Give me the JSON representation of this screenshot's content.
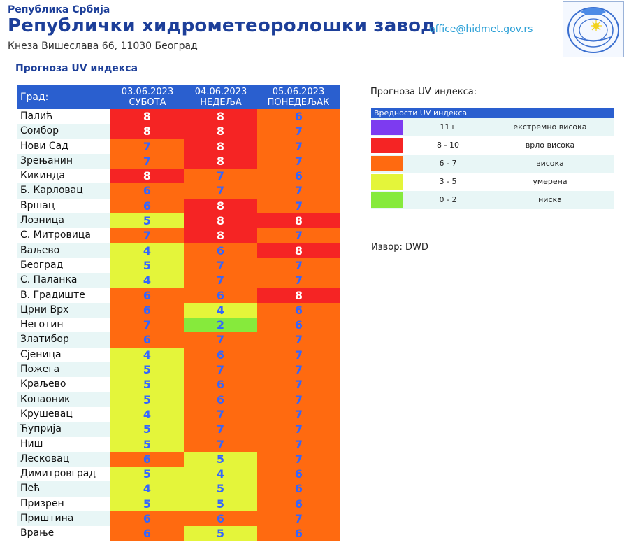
{
  "header": {
    "org_small": "Република Србија",
    "org_title": "Републички хидрометеоролошки завод",
    "address": "Кнеза Вишеслава 66, 11030 Београд",
    "email": "office@hidmet.gov.rs",
    "logo_icon": "rhmz-logo-icon",
    "logo_text": "РХМЗ СРБИЈЕ"
  },
  "page_title": "Прогноза UV индекса",
  "table": {
    "city_header": "Град:",
    "days": [
      {
        "date": "03.06.2023",
        "weekday": "СУБОТА"
      },
      {
        "date": "04.06.2023",
        "weekday": "НЕДЕЉА"
      },
      {
        "date": "05.06.2023",
        "weekday": "ПОНЕДЕЉАК"
      }
    ],
    "rows": [
      {
        "city": "Палић",
        "values": [
          "8",
          "8",
          "6"
        ],
        "levels": [
          "very",
          "very",
          "high"
        ]
      },
      {
        "city": "Сомбор",
        "values": [
          "8",
          "8",
          "7"
        ],
        "levels": [
          "very",
          "very",
          "high"
        ]
      },
      {
        "city": "Нови Сад",
        "values": [
          "7",
          "8",
          "7"
        ],
        "levels": [
          "high",
          "very",
          "high"
        ]
      },
      {
        "city": "Зрењанин",
        "values": [
          "7",
          "8",
          "7"
        ],
        "levels": [
          "high",
          "very",
          "high"
        ]
      },
      {
        "city": "Кикинда",
        "values": [
          "8",
          "7",
          "6"
        ],
        "levels": [
          "very",
          "high",
          "high"
        ]
      },
      {
        "city": "Б. Карловац",
        "values": [
          "6",
          "7",
          "7"
        ],
        "levels": [
          "high",
          "high",
          "high"
        ]
      },
      {
        "city": "Вршац",
        "values": [
          "6",
          "8",
          "7"
        ],
        "levels": [
          "high",
          "very",
          "high"
        ]
      },
      {
        "city": "Лозница",
        "values": [
          "5",
          "8",
          "8"
        ],
        "levels": [
          "mod",
          "very",
          "very"
        ]
      },
      {
        "city": "С. Митровица",
        "values": [
          "7",
          "8",
          "7"
        ],
        "levels": [
          "high",
          "very",
          "high"
        ]
      },
      {
        "city": "Ваљево",
        "values": [
          "4",
          "6",
          "8"
        ],
        "levels": [
          "mod",
          "high",
          "very"
        ]
      },
      {
        "city": "Београд",
        "values": [
          "5",
          "7",
          "7"
        ],
        "levels": [
          "mod",
          "high",
          "high"
        ]
      },
      {
        "city": "С. Паланка",
        "values": [
          "4",
          "7",
          "7"
        ],
        "levels": [
          "mod",
          "high",
          "high"
        ]
      },
      {
        "city": "В. Градиште",
        "values": [
          "6",
          "6",
          "8"
        ],
        "levels": [
          "high",
          "high",
          "very"
        ]
      },
      {
        "city": "Црни Врх",
        "values": [
          "6",
          "4",
          "6"
        ],
        "levels": [
          "high",
          "mod",
          "high"
        ]
      },
      {
        "city": "Неготин",
        "values": [
          "7",
          "2",
          "6"
        ],
        "levels": [
          "high",
          "low",
          "high"
        ]
      },
      {
        "city": "Златибор",
        "values": [
          "6",
          "7",
          "7"
        ],
        "levels": [
          "high",
          "high",
          "high"
        ]
      },
      {
        "city": "Сјеница",
        "values": [
          "4",
          "6",
          "7"
        ],
        "levels": [
          "mod",
          "high",
          "high"
        ]
      },
      {
        "city": "Пожега",
        "values": [
          "5",
          "7",
          "7"
        ],
        "levels": [
          "mod",
          "high",
          "high"
        ]
      },
      {
        "city": "Краљево",
        "values": [
          "5",
          "6",
          "7"
        ],
        "levels": [
          "mod",
          "high",
          "high"
        ]
      },
      {
        "city": "Копаоник",
        "values": [
          "5",
          "6",
          "7"
        ],
        "levels": [
          "mod",
          "high",
          "high"
        ]
      },
      {
        "city": "Крушевац",
        "values": [
          "4",
          "7",
          "7"
        ],
        "levels": [
          "mod",
          "high",
          "high"
        ]
      },
      {
        "city": "Ћуприја",
        "values": [
          "5",
          "7",
          "7"
        ],
        "levels": [
          "mod",
          "high",
          "high"
        ]
      },
      {
        "city": "Ниш",
        "values": [
          "5",
          "7",
          "7"
        ],
        "levels": [
          "mod",
          "high",
          "high"
        ]
      },
      {
        "city": "Лесковац",
        "values": [
          "6",
          "5",
          "7"
        ],
        "levels": [
          "high",
          "mod",
          "high"
        ]
      },
      {
        "city": "Димитровград",
        "values": [
          "5",
          "4",
          "6"
        ],
        "levels": [
          "mod",
          "mod",
          "high"
        ]
      },
      {
        "city": "Пећ",
        "values": [
          "4",
          "5",
          "6"
        ],
        "levels": [
          "mod",
          "mod",
          "high"
        ]
      },
      {
        "city": "Призрен",
        "values": [
          "5",
          "5",
          "6"
        ],
        "levels": [
          "mod",
          "mod",
          "high"
        ]
      },
      {
        "city": "Приштина",
        "values": [
          "6",
          "6",
          "7"
        ],
        "levels": [
          "high",
          "high",
          "high"
        ]
      },
      {
        "city": "Врање",
        "values": [
          "6",
          "5",
          "6"
        ],
        "levels": [
          "high",
          "mod",
          "high"
        ]
      }
    ]
  },
  "legend": {
    "title": "Прогноза UV индекса:",
    "header": "Вредности UV индекса",
    "items": [
      {
        "range": "11+",
        "label": "екстремно висока",
        "level": "ext",
        "color": "#7d3bf0"
      },
      {
        "range": "8 - 10",
        "label": "врло висока",
        "level": "very",
        "color": "#f52424"
      },
      {
        "range": "6 - 7",
        "label": "висока",
        "level": "high",
        "color": "#ff6a10"
      },
      {
        "range": "3 - 5",
        "label": "умерена",
        "level": "mod",
        "color": "#e4f53a"
      },
      {
        "range": "0 - 2",
        "label": "ниска",
        "level": "low",
        "color": "#86ea3c"
      }
    ]
  },
  "source": "Извор: DWD"
}
